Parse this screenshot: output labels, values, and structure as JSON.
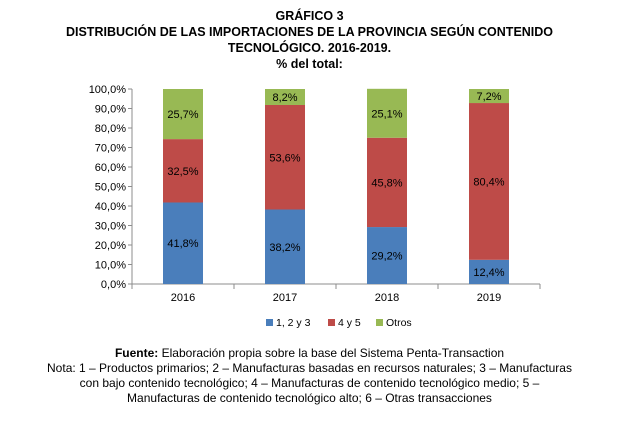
{
  "header": {
    "label": "GRÁFICO 3",
    "title_line1": "DISTRIBUCIÓN DE LAS IMPORTACIONES DE LA PROVINCIA SEGÚN CONTENIDO",
    "title_line2": "TECNOLÓGICO. 2016-2019.",
    "subtitle": "% del total:"
  },
  "chart_data": {
    "type": "bar",
    "stacked": true,
    "categories": [
      "2016",
      "2017",
      "2018",
      "2019"
    ],
    "series": [
      {
        "name": "1, 2 y 3",
        "color": "#4a7ebb",
        "values": [
          41.8,
          38.2,
          29.2,
          12.4
        ],
        "labels": [
          "41,8%",
          "38,2%",
          "29,2%",
          "12,4%"
        ]
      },
      {
        "name": "4 y 5",
        "color": "#be4b48",
        "values": [
          32.5,
          53.6,
          45.8,
          80.4
        ],
        "labels": [
          "32,5%",
          "53,6%",
          "45,8%",
          "80,4%"
        ]
      },
      {
        "name": "Otros",
        "color": "#98b954",
        "values": [
          25.7,
          8.2,
          25.1,
          7.2
        ],
        "labels": [
          "25,7%",
          "8,2%",
          "25,1%",
          "7,2%"
        ]
      }
    ],
    "ylim": [
      0,
      100
    ],
    "yticks": [
      "0,0%",
      "10,0%",
      "20,0%",
      "30,0%",
      "40,0%",
      "50,0%",
      "60,0%",
      "70,0%",
      "80,0%",
      "90,0%",
      "100,0%"
    ],
    "grid": false,
    "legend_position": "bottom",
    "legend": [
      "1, 2 y 3",
      "4 y 5",
      "Otros"
    ]
  },
  "footer": {
    "source_label": "Fuente:",
    "source_text": " Elaboración propia sobre la base del Sistema Penta-Transaction",
    "note_line1": "Nota: 1 – Productos primarios; 2 – Manufacturas basadas en recursos naturales; 3 – Manufacturas",
    "note_line2": "con bajo contenido tecnológico; 4 – Manufacturas de contenido tecnológico medio; 5 –",
    "note_line3": "Manufacturas de contenido tecnológico alto; 6 – Otras transacciones"
  }
}
